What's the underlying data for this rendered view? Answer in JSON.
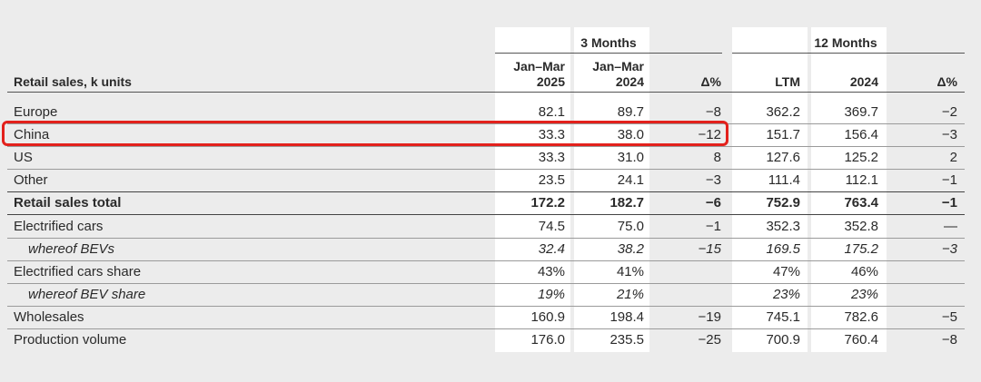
{
  "table": {
    "row_header_title": "Retail sales, k units",
    "group_3m": "3 Months",
    "group_12m": "12 Months",
    "col_headers": [
      {
        "line1": "Jan–Mar",
        "line2": "2025"
      },
      {
        "line1": "Jan–Mar",
        "line2": "2024"
      },
      {
        "line1": "",
        "line2": "Δ%"
      },
      {
        "line1": "",
        "line2": "LTM"
      },
      {
        "line1": "",
        "line2": "2024"
      },
      {
        "line1": "",
        "line2": "Δ%"
      }
    ],
    "rows": [
      {
        "label": "Europe",
        "values": [
          "82.1",
          "89.7",
          "−8",
          "362.2",
          "369.7",
          "−2"
        ]
      },
      {
        "label": "China",
        "values": [
          "33.3",
          "38.0",
          "−12",
          "151.7",
          "156.4",
          "−3"
        ]
      },
      {
        "label": "US",
        "values": [
          "33.3",
          "31.0",
          "8",
          "127.6",
          "125.2",
          "2"
        ]
      },
      {
        "label": "Other",
        "values": [
          "23.5",
          "24.1",
          "−3",
          "111.4",
          "112.1",
          "−1"
        ]
      },
      {
        "label": "Retail sales total",
        "values": [
          "172.2",
          "182.7",
          "−6",
          "752.9",
          "763.4",
          "−1"
        ]
      },
      {
        "label": "Electrified cars",
        "values": [
          "74.5",
          "75.0",
          "−1",
          "352.3",
          "352.8",
          "—"
        ]
      },
      {
        "label": "whereof BEVs",
        "values": [
          "32.4",
          "38.2",
          "−15",
          "169.5",
          "175.2",
          "−3"
        ]
      },
      {
        "label": "Electrified cars share",
        "values": [
          "43%",
          "41%",
          "",
          "47%",
          "46%",
          ""
        ]
      },
      {
        "label": "whereof BEV share",
        "values": [
          "19%",
          "21%",
          "",
          "23%",
          "23%",
          ""
        ]
      },
      {
        "label": "Wholesales",
        "values": [
          "160.9",
          "198.4",
          "−19",
          "745.1",
          "782.6",
          "−5"
        ]
      },
      {
        "label": "Production volume",
        "values": [
          "176.0",
          "235.5",
          "−25",
          "700.9",
          "760.4",
          "−8"
        ]
      }
    ]
  },
  "colors": {
    "highlight_border": "#e3211c",
    "page_background": "#ececec",
    "column_background": "#ffffff"
  }
}
